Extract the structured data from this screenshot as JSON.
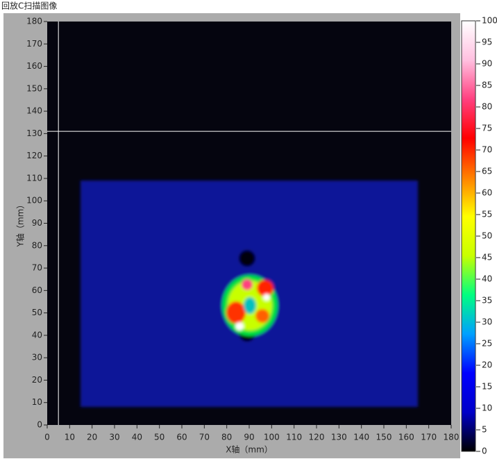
{
  "chart_data": {
    "type": "heatmap",
    "title": "回放C扫描图像",
    "xlabel": "X轴（mm）",
    "ylabel": "Y轴（mm）",
    "xlim": [
      0,
      180
    ],
    "xticks": [
      0,
      10,
      20,
      30,
      40,
      50,
      60,
      70,
      80,
      90,
      100,
      110,
      120,
      130,
      140,
      150,
      160,
      170,
      180
    ],
    "ylim": [
      0,
      180
    ],
    "yticks": [
      0,
      10,
      20,
      30,
      40,
      50,
      60,
      70,
      80,
      90,
      100,
      110,
      120,
      130,
      140,
      150,
      160,
      170,
      180
    ],
    "colorbar": {
      "lim": [
        0,
        100
      ],
      "ticks": [
        0,
        5,
        10,
        15,
        20,
        25,
        30,
        35,
        40,
        45,
        50,
        55,
        60,
        65,
        70,
        75,
        80,
        85,
        90,
        95,
        100
      ],
      "colors": [
        "#000000",
        "#0000c8",
        "#0000ff",
        "#00a0ff",
        "#00ff80",
        "#c8ff00",
        "#ffff00",
        "#ff8000",
        "#ff0000",
        "#ff4080",
        "#ffc0e0",
        "#ffffff"
      ]
    },
    "cursor": {
      "x": 5,
      "y": 131,
      "color": "#ffffff"
    }
  }
}
